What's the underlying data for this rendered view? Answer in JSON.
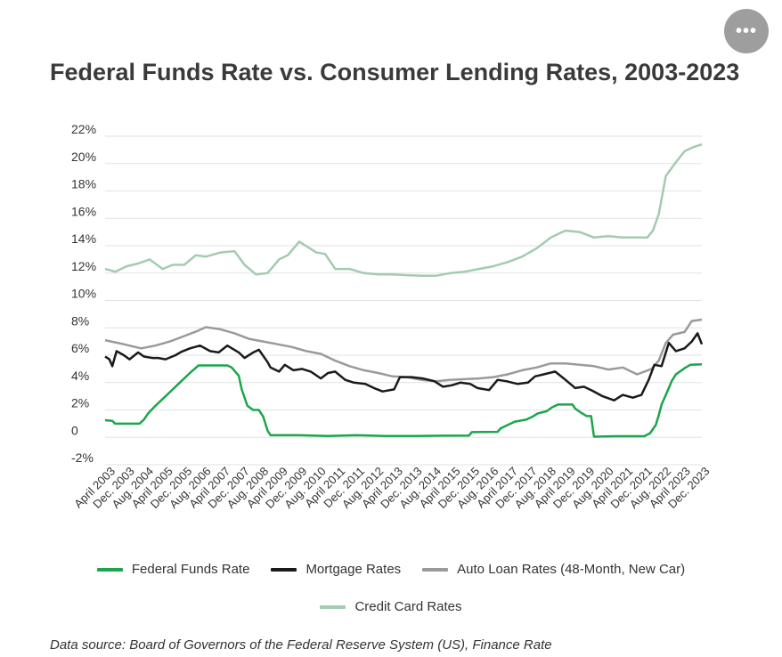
{
  "menu": {
    "icon": "more-dots-icon",
    "label": "•••"
  },
  "chart_data": {
    "type": "line",
    "title": "Federal Funds Rate vs. Consumer Lending Rates, 2003-2023",
    "source": "Data source: Board of Governors of the Federal Reserve System (US), Finance Rate",
    "xlabel": "",
    "ylabel": "",
    "ylim": [
      -2,
      22
    ],
    "xlim": [
      2003.25,
      2024.0
    ],
    "y_ticks": [
      -2,
      0,
      2,
      4,
      6,
      8,
      10,
      12,
      14,
      16,
      18,
      20,
      22
    ],
    "y_tick_labels": [
      "-2%",
      "0",
      "2%",
      "4%",
      "6%",
      "8%",
      "10%",
      "12%",
      "14%",
      "16%",
      "18%",
      "20%",
      "22%"
    ],
    "x_tick_labels": [
      {
        "label": "April 2003",
        "x": 2003.25
      },
      {
        "label": "Dec. 2003",
        "x": 2003.92
      },
      {
        "label": "Aug. 2004",
        "x": 2004.58
      },
      {
        "label": "April 2005",
        "x": 2005.25
      },
      {
        "label": "Dec. 2005",
        "x": 2005.92
      },
      {
        "label": "Aug. 2006",
        "x": 2006.58
      },
      {
        "label": "April 2007",
        "x": 2007.25
      },
      {
        "label": "Dec. 2007",
        "x": 2007.92
      },
      {
        "label": "Aug. 2008",
        "x": 2008.58
      },
      {
        "label": "April 2009",
        "x": 2009.25
      },
      {
        "label": "Dec. 2009",
        "x": 2009.92
      },
      {
        "label": "Aug. 2010",
        "x": 2010.58
      },
      {
        "label": "April 2011",
        "x": 2011.25
      },
      {
        "label": "Dec. 2011",
        "x": 2011.92
      },
      {
        "label": "Aug. 2012",
        "x": 2012.58
      },
      {
        "label": "April 2013",
        "x": 2013.25
      },
      {
        "label": "Dec. 2013",
        "x": 2013.92
      },
      {
        "label": "Aug. 2014",
        "x": 2014.58
      },
      {
        "label": "April 2015",
        "x": 2015.25
      },
      {
        "label": "Dec. 2015",
        "x": 2015.92
      },
      {
        "label": "Aug. 2016",
        "x": 2016.58
      },
      {
        "label": "April 2017",
        "x": 2017.25
      },
      {
        "label": "Dec. 2017",
        "x": 2017.92
      },
      {
        "label": "Aug. 2018",
        "x": 2018.58
      },
      {
        "label": "April 2019",
        "x": 2019.25
      },
      {
        "label": "Dec. 2019",
        "x": 2019.92
      },
      {
        "label": "Aug. 2020",
        "x": 2020.58
      },
      {
        "label": "April 2021",
        "x": 2021.25
      },
      {
        "label": "Dec. 2021",
        "x": 2021.92
      },
      {
        "label": "Aug. 2022",
        "x": 2022.58
      },
      {
        "label": "April 2023",
        "x": 2023.25
      },
      {
        "label": "Dec. 2023",
        "x": 2023.92
      }
    ],
    "grid": true,
    "legend_position": "bottom",
    "series": [
      {
        "name": "Federal Funds Rate",
        "color": "#1aa64a",
        "points": [
          [
            2003.25,
            1.25
          ],
          [
            2003.5,
            1.2
          ],
          [
            2003.6,
            1.0
          ],
          [
            2004.0,
            1.0
          ],
          [
            2004.45,
            1.0
          ],
          [
            2004.6,
            1.3
          ],
          [
            2004.75,
            1.75
          ],
          [
            2005.0,
            2.3
          ],
          [
            2005.25,
            2.8
          ],
          [
            2005.5,
            3.3
          ],
          [
            2005.75,
            3.8
          ],
          [
            2006.0,
            4.3
          ],
          [
            2006.25,
            4.8
          ],
          [
            2006.5,
            5.25
          ],
          [
            2007.0,
            5.25
          ],
          [
            2007.5,
            5.25
          ],
          [
            2007.65,
            5.1
          ],
          [
            2007.9,
            4.5
          ],
          [
            2008.0,
            3.5
          ],
          [
            2008.2,
            2.3
          ],
          [
            2008.4,
            2.0
          ],
          [
            2008.6,
            2.0
          ],
          [
            2008.75,
            1.5
          ],
          [
            2008.9,
            0.5
          ],
          [
            2009.0,
            0.15
          ],
          [
            2010.0,
            0.15
          ],
          [
            2011.0,
            0.1
          ],
          [
            2012.0,
            0.15
          ],
          [
            2013.0,
            0.1
          ],
          [
            2014.0,
            0.1
          ],
          [
            2015.0,
            0.12
          ],
          [
            2015.9,
            0.13
          ],
          [
            2016.0,
            0.38
          ],
          [
            2016.9,
            0.4
          ],
          [
            2017.0,
            0.65
          ],
          [
            2017.25,
            0.9
          ],
          [
            2017.5,
            1.15
          ],
          [
            2017.9,
            1.3
          ],
          [
            2018.1,
            1.5
          ],
          [
            2018.3,
            1.75
          ],
          [
            2018.6,
            1.9
          ],
          [
            2018.8,
            2.2
          ],
          [
            2019.0,
            2.4
          ],
          [
            2019.5,
            2.4
          ],
          [
            2019.6,
            2.1
          ],
          [
            2019.8,
            1.8
          ],
          [
            2020.0,
            1.55
          ],
          [
            2020.15,
            1.55
          ],
          [
            2020.25,
            0.05
          ],
          [
            2021.0,
            0.08
          ],
          [
            2022.0,
            0.08
          ],
          [
            2022.2,
            0.3
          ],
          [
            2022.4,
            0.9
          ],
          [
            2022.5,
            1.6
          ],
          [
            2022.6,
            2.4
          ],
          [
            2022.75,
            3.1
          ],
          [
            2022.95,
            4.1
          ],
          [
            2023.1,
            4.6
          ],
          [
            2023.4,
            5.05
          ],
          [
            2023.6,
            5.3
          ],
          [
            2024.0,
            5.33
          ]
        ]
      },
      {
        "name": "Mortgage Rates",
        "color": "#1a1a1a",
        "points": [
          [
            2003.25,
            5.9
          ],
          [
            2003.4,
            5.7
          ],
          [
            2003.5,
            5.2
          ],
          [
            2003.65,
            6.3
          ],
          [
            2003.9,
            6.0
          ],
          [
            2004.1,
            5.7
          ],
          [
            2004.4,
            6.2
          ],
          [
            2004.6,
            5.9
          ],
          [
            2004.9,
            5.8
          ],
          [
            2005.1,
            5.8
          ],
          [
            2005.35,
            5.7
          ],
          [
            2005.7,
            6.0
          ],
          [
            2005.9,
            6.25
          ],
          [
            2006.2,
            6.5
          ],
          [
            2006.55,
            6.7
          ],
          [
            2006.9,
            6.3
          ],
          [
            2007.2,
            6.2
          ],
          [
            2007.5,
            6.7
          ],
          [
            2007.9,
            6.2
          ],
          [
            2008.1,
            5.8
          ],
          [
            2008.4,
            6.2
          ],
          [
            2008.6,
            6.4
          ],
          [
            2008.9,
            5.5
          ],
          [
            2009.0,
            5.1
          ],
          [
            2009.3,
            4.8
          ],
          [
            2009.5,
            5.3
          ],
          [
            2009.8,
            4.9
          ],
          [
            2010.1,
            5.0
          ],
          [
            2010.4,
            4.8
          ],
          [
            2010.75,
            4.3
          ],
          [
            2011.0,
            4.7
          ],
          [
            2011.25,
            4.8
          ],
          [
            2011.6,
            4.2
          ],
          [
            2011.9,
            4.0
          ],
          [
            2012.3,
            3.9
          ],
          [
            2012.6,
            3.6
          ],
          [
            2012.9,
            3.35
          ],
          [
            2013.3,
            3.5
          ],
          [
            2013.5,
            4.4
          ],
          [
            2013.9,
            4.4
          ],
          [
            2014.3,
            4.3
          ],
          [
            2014.7,
            4.1
          ],
          [
            2015.0,
            3.7
          ],
          [
            2015.3,
            3.8
          ],
          [
            2015.6,
            4.0
          ],
          [
            2015.95,
            3.9
          ],
          [
            2016.2,
            3.6
          ],
          [
            2016.6,
            3.45
          ],
          [
            2016.9,
            4.2
          ],
          [
            2017.2,
            4.1
          ],
          [
            2017.6,
            3.9
          ],
          [
            2017.95,
            4.0
          ],
          [
            2018.2,
            4.45
          ],
          [
            2018.5,
            4.6
          ],
          [
            2018.9,
            4.8
          ],
          [
            2019.2,
            4.3
          ],
          [
            2019.6,
            3.6
          ],
          [
            2019.9,
            3.7
          ],
          [
            2020.2,
            3.4
          ],
          [
            2020.55,
            3.0
          ],
          [
            2020.95,
            2.7
          ],
          [
            2021.25,
            3.1
          ],
          [
            2021.6,
            2.9
          ],
          [
            2021.9,
            3.1
          ],
          [
            2022.15,
            4.2
          ],
          [
            2022.35,
            5.3
          ],
          [
            2022.6,
            5.2
          ],
          [
            2022.85,
            6.9
          ],
          [
            2023.1,
            6.3
          ],
          [
            2023.4,
            6.5
          ],
          [
            2023.65,
            7.0
          ],
          [
            2023.85,
            7.6
          ],
          [
            2024.0,
            6.8
          ]
        ]
      },
      {
        "name": "Auto Loan Rates (48-Month, New Car)",
        "color": "#9a9a9a",
        "points": [
          [
            2003.25,
            7.1
          ],
          [
            2003.9,
            6.8
          ],
          [
            2004.5,
            6.5
          ],
          [
            2005.0,
            6.7
          ],
          [
            2005.5,
            7.0
          ],
          [
            2006.0,
            7.4
          ],
          [
            2006.5,
            7.8
          ],
          [
            2006.75,
            8.05
          ],
          [
            2007.25,
            7.9
          ],
          [
            2007.75,
            7.6
          ],
          [
            2008.25,
            7.2
          ],
          [
            2008.75,
            7.0
          ],
          [
            2009.25,
            6.8
          ],
          [
            2009.75,
            6.6
          ],
          [
            2010.25,
            6.3
          ],
          [
            2010.75,
            6.1
          ],
          [
            2011.25,
            5.6
          ],
          [
            2011.75,
            5.2
          ],
          [
            2012.25,
            4.9
          ],
          [
            2012.75,
            4.7
          ],
          [
            2013.25,
            4.45
          ],
          [
            2013.75,
            4.4
          ],
          [
            2014.25,
            4.2
          ],
          [
            2014.75,
            4.1
          ],
          [
            2015.25,
            4.2
          ],
          [
            2015.75,
            4.25
          ],
          [
            2016.25,
            4.3
          ],
          [
            2016.75,
            4.4
          ],
          [
            2017.25,
            4.6
          ],
          [
            2017.75,
            4.9
          ],
          [
            2018.25,
            5.1
          ],
          [
            2018.75,
            5.4
          ],
          [
            2019.25,
            5.4
          ],
          [
            2019.75,
            5.3
          ],
          [
            2020.25,
            5.2
          ],
          [
            2020.75,
            4.95
          ],
          [
            2021.25,
            5.1
          ],
          [
            2021.75,
            4.6
          ],
          [
            2022.25,
            5.0
          ],
          [
            2022.5,
            5.6
          ],
          [
            2022.75,
            6.9
          ],
          [
            2023.0,
            7.5
          ],
          [
            2023.4,
            7.7
          ],
          [
            2023.65,
            8.5
          ],
          [
            2024.0,
            8.6
          ]
        ]
      },
      {
        "name": "Credit Card Rates",
        "color": "#a3cbb0",
        "points": [
          [
            2003.25,
            12.3
          ],
          [
            2003.6,
            12.1
          ],
          [
            2004.0,
            12.5
          ],
          [
            2004.4,
            12.7
          ],
          [
            2004.8,
            13.0
          ],
          [
            2005.25,
            12.3
          ],
          [
            2005.6,
            12.6
          ],
          [
            2006.0,
            12.6
          ],
          [
            2006.4,
            13.3
          ],
          [
            2006.75,
            13.2
          ],
          [
            2007.25,
            13.5
          ],
          [
            2007.75,
            13.6
          ],
          [
            2008.1,
            12.6
          ],
          [
            2008.5,
            11.9
          ],
          [
            2008.9,
            12.0
          ],
          [
            2009.3,
            13.0
          ],
          [
            2009.6,
            13.3
          ],
          [
            2010.0,
            14.3
          ],
          [
            2010.3,
            13.9
          ],
          [
            2010.6,
            13.5
          ],
          [
            2010.9,
            13.4
          ],
          [
            2011.25,
            12.3
          ],
          [
            2011.75,
            12.3
          ],
          [
            2012.25,
            12.0
          ],
          [
            2012.75,
            11.9
          ],
          [
            2013.25,
            11.9
          ],
          [
            2013.75,
            11.85
          ],
          [
            2014.25,
            11.8
          ],
          [
            2014.75,
            11.8
          ],
          [
            2015.25,
            12.0
          ],
          [
            2015.75,
            12.1
          ],
          [
            2016.25,
            12.3
          ],
          [
            2016.75,
            12.5
          ],
          [
            2017.25,
            12.8
          ],
          [
            2017.75,
            13.2
          ],
          [
            2018.25,
            13.8
          ],
          [
            2018.75,
            14.6
          ],
          [
            2019.25,
            15.1
          ],
          [
            2019.75,
            15.0
          ],
          [
            2020.25,
            14.6
          ],
          [
            2020.75,
            14.7
          ],
          [
            2021.25,
            14.6
          ],
          [
            2021.75,
            14.6
          ],
          [
            2022.1,
            14.6
          ],
          [
            2022.3,
            15.1
          ],
          [
            2022.5,
            16.3
          ],
          [
            2022.75,
            19.1
          ],
          [
            2023.1,
            20.1
          ],
          [
            2023.4,
            20.9
          ],
          [
            2023.7,
            21.2
          ],
          [
            2024.0,
            21.4
          ]
        ]
      }
    ]
  }
}
